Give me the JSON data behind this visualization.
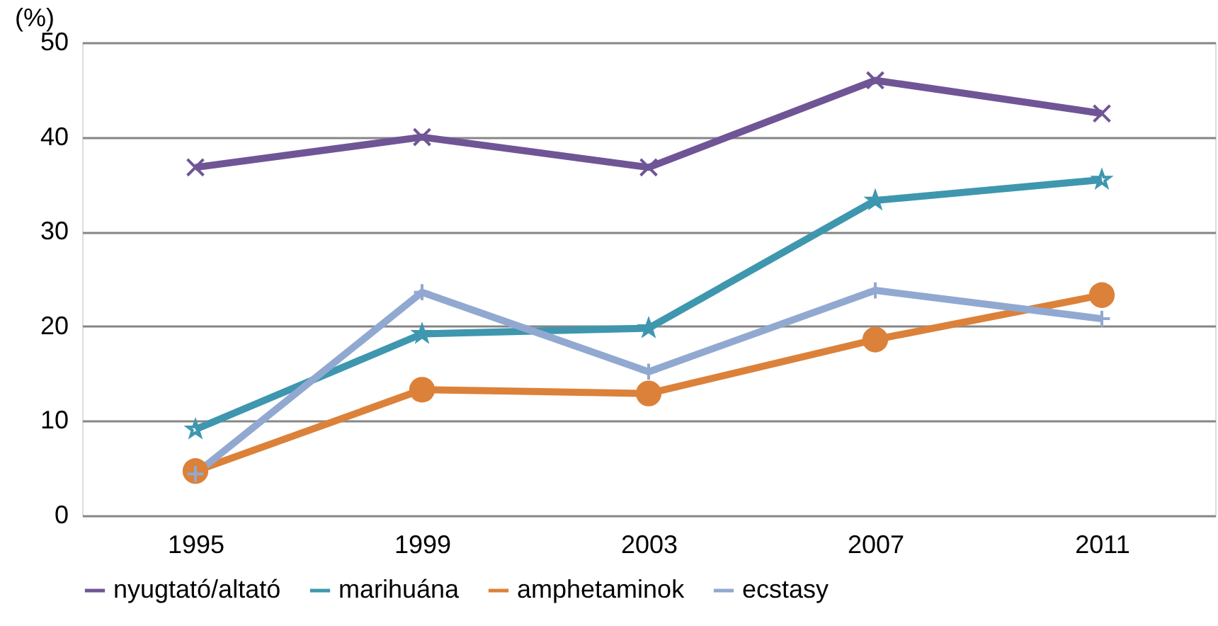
{
  "chart_data": {
    "type": "line",
    "ylabel": "(%)",
    "categories": [
      "1995",
      "1999",
      "2003",
      "2007",
      "2011"
    ],
    "series": [
      {
        "name": "nyugtató/altató",
        "color": "#6f5596",
        "marker": "x",
        "values": [
          36.8,
          40.0,
          36.8,
          46.0,
          42.5
        ]
      },
      {
        "name": "marihuána",
        "color": "#3e97ae",
        "marker": "star",
        "values": [
          9.1,
          19.2,
          19.8,
          33.3,
          35.5
        ]
      },
      {
        "name": "amphetaminok",
        "color": "#dc8139",
        "marker": "circle",
        "values": [
          4.7,
          13.3,
          12.9,
          18.6,
          23.3
        ]
      },
      {
        "name": "ecstasy",
        "color": "#91a9d1",
        "marker": "cross",
        "values": [
          4.4,
          23.6,
          15.2,
          23.8,
          20.8
        ]
      }
    ],
    "ylim": [
      0,
      50
    ],
    "yticks": [
      0,
      10,
      20,
      30,
      40,
      50
    ],
    "grid": "y",
    "legend": "bottom",
    "line_style": "solid"
  }
}
